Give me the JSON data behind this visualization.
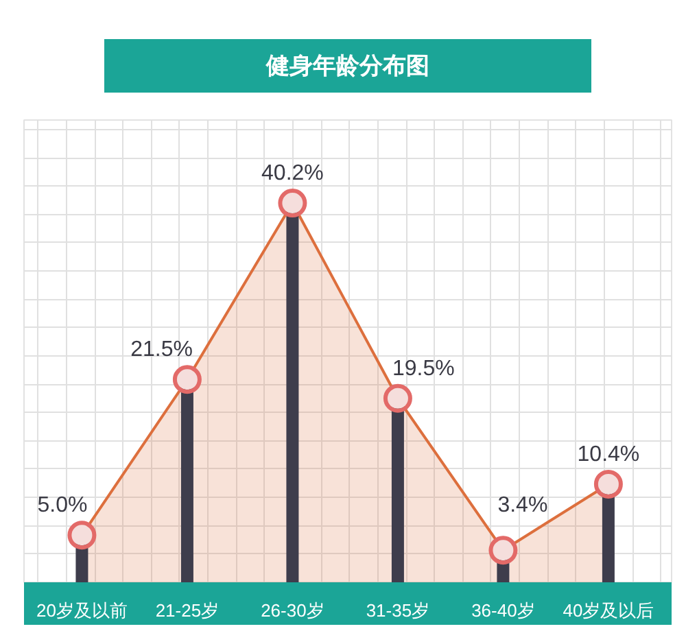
{
  "chart_data": {
    "type": "lollipop",
    "title": "健身年龄分布图",
    "categories": [
      "20岁及以前",
      "21-25岁",
      "26-30岁",
      "31-35岁",
      "36-40岁",
      "40岁及以后"
    ],
    "series": [
      {
        "type": "area",
        "color": "#dd6f3d",
        "values": [
          5.0,
          21.5,
          40.2,
          19.5,
          3.4,
          10.4
        ],
        "value_labels": [
          "5.0%",
          "21.5%",
          "40.2%",
          "19.5%",
          "3.4%",
          "10.4%"
        ]
      },
      {
        "color": "#e36a68",
        "marker": "circle",
        "values": [
          5.0,
          21.5,
          40.2,
          19.5,
          3.4,
          10.4
        ]
      }
    ],
    "ylim": [
      0,
      49
    ],
    "yticks": [
      {
        "value": 0,
        "label": null
      },
      {
        "value": 3,
        "label": null
      },
      {
        "value": 6,
        "label": null
      },
      {
        "value": 9,
        "label": null
      },
      {
        "value": 12,
        "label": null
      },
      {
        "value": 15,
        "label": null
      },
      {
        "value": 18,
        "label": null
      },
      {
        "value": 21,
        "label": null
      },
      {
        "value": 24,
        "label": null
      },
      {
        "value": 27,
        "label": null
      },
      {
        "value": 30,
        "label": null
      },
      {
        "value": 33,
        "label": null
      },
      {
        "value": 36,
        "label": null
      },
      {
        "value": 39,
        "label": null
      },
      {
        "value": 42,
        "label": null
      },
      {
        "value": 45,
        "label": null
      },
      {
        "value": 48,
        "label": null
      }
    ],
    "grid": true,
    "tick_labels": "x"
  }
}
